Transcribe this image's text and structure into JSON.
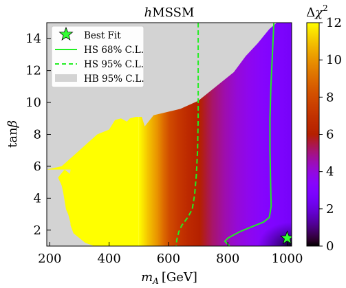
{
  "chart_data": {
    "type": "heatmap",
    "title": "hMSSM",
    "title_parts": {
      "italic": "h",
      "rest": "MSSM"
    },
    "xlabel": "m_A [GeV]",
    "xlabel_parts": {
      "italic": "m",
      "sub": "A",
      "rest": "[GeV]"
    },
    "ylabel": "tanβ",
    "ylabel_parts": {
      "roman": "tan",
      "italic": "β"
    },
    "xlim": [
      190,
      1015
    ],
    "ylim": [
      1,
      15
    ],
    "xticks": [
      200,
      400,
      600,
      800,
      1000
    ],
    "yticks": [
      2,
      4,
      6,
      8,
      10,
      12,
      14
    ],
    "colorbar": {
      "label": "Δχ²",
      "label_parts": {
        "symbol": "Δ",
        "italic": "χ",
        "sup": "2"
      },
      "range": [
        0,
        12
      ],
      "ticks": [
        0,
        2,
        4,
        6,
        8,
        10,
        12
      ],
      "colormap": "gnuplot"
    },
    "colors": {
      "background": "#ffffff",
      "hb_excluded": "#d3d3d3",
      "hs_contour": "#22ee22",
      "best_fit_marker": "#33ff33"
    },
    "heatmap_chi2": {
      "x": [
        500,
        530,
        560,
        580,
        600,
        630,
        660,
        700,
        740,
        780,
        820,
        860,
        900,
        940,
        1000
      ],
      "values": [
        12,
        11,
        10,
        9,
        8,
        7.2,
        6.6,
        6.0,
        5.2,
        4.6,
        4.1,
        3.7,
        3.3,
        3.0,
        2.6
      ],
      "note_low_tanb_dark_region": {
        "x_min": 900,
        "tanb_max": 2.5,
        "min_value": 0.2
      }
    },
    "hb_excluded_region": {
      "upper_boundary": [
        [
          545,
          15
        ],
        [
          550,
          9.2
        ],
        [
          640,
          9.6
        ],
        [
          700,
          10.1
        ],
        [
          760,
          11.0
        ],
        [
          820,
          11.9
        ],
        [
          860,
          12.9
        ],
        [
          900,
          13.7
        ],
        [
          940,
          14.6
        ],
        [
          965,
          15
        ]
      ],
      "left_boundary": [
        [
          190,
          5.8
        ],
        [
          240,
          6.0
        ],
        [
          300,
          7.0
        ],
        [
          360,
          8.0
        ],
        [
          400,
          8.3
        ],
        [
          420,
          8.9
        ],
        [
          440,
          9.0
        ],
        [
          460,
          8.8
        ],
        [
          470,
          9.0
        ],
        [
          490,
          9.1
        ],
        [
          510,
          9.1
        ],
        [
          520,
          8.5
        ]
      ],
      "low_mass_strip": [
        [
          190,
          1
        ],
        [
          190,
          5.8
        ],
        [
          270,
          5.8
        ],
        [
          262,
          4.6
        ],
        [
          265,
          4.2
        ],
        [
          268,
          3.4
        ],
        [
          270,
          2.3
        ],
        [
          280,
          1.8
        ],
        [
          320,
          1.2
        ],
        [
          350,
          1
        ]
      ],
      "island": [
        [
          228,
          5.3
        ],
        [
          250,
          5.8
        ],
        [
          270,
          5.5
        ],
        [
          265,
          4.5
        ],
        [
          270,
          3.7
        ],
        [
          275,
          2.5
        ],
        [
          272,
          2.3
        ],
        [
          262,
          3.0
        ],
        [
          255,
          3.3
        ],
        [
          245,
          4.4
        ],
        [
          240,
          4.8
        ]
      ]
    },
    "series": [
      {
        "name": "HS 68% C.L.",
        "style": "solid",
        "x": [
          955,
          950,
          945,
          942,
          942,
          944,
          946,
          940,
          920,
          880,
          840,
          800,
          790,
          806
        ],
        "y": [
          15,
          13,
          11,
          9,
          7,
          5,
          3.5,
          2.8,
          2.5,
          2.2,
          1.9,
          1.5,
          1.3,
          1
        ]
      },
      {
        "name": "HS 95% C.L.",
        "style": "dashed",
        "x": [
          700,
          700,
          700,
          698,
          694,
          688,
          680,
          665,
          645,
          635,
          628,
          626
        ],
        "y": [
          15,
          12,
          9,
          7,
          5.5,
          4.2,
          3.3,
          2.8,
          2.3,
          1.9,
          1.4,
          1
        ]
      }
    ],
    "best_fit": {
      "x": 1000,
      "y": 1.5
    },
    "legend": {
      "placement": "top-left",
      "entries": [
        {
          "label": "Best Fit",
          "kind": "star"
        },
        {
          "label": "HS 68% C.L.",
          "kind": "solid"
        },
        {
          "label": "HS 95% C.L.",
          "kind": "dashed"
        },
        {
          "label": "HB 95% C.L.",
          "kind": "patch"
        }
      ]
    }
  }
}
